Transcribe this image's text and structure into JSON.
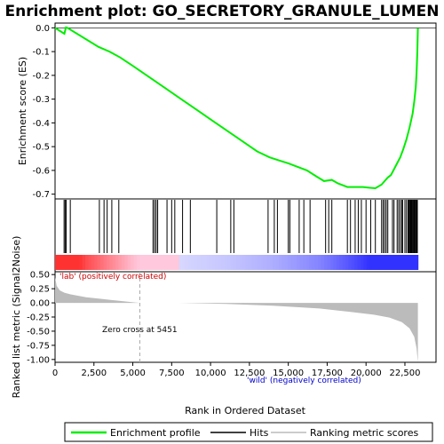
{
  "chart_data": {
    "type": "line",
    "title": "Enrichment plot: GO_SECRETORY_GRANULE_LUMEN",
    "panels": {
      "enrichment": {
        "ylabel": "Enrichment score (ES)",
        "ylim": [
          -0.72,
          0.02
        ],
        "yticks": [
          0.0,
          -0.1,
          -0.2,
          -0.3,
          -0.4,
          -0.5,
          -0.6,
          -0.7
        ],
        "ytick_labels": [
          "0.0",
          "-0.1",
          "-0.2",
          "-0.3",
          "-0.4",
          "-0.5",
          "-0.6",
          "-0.7"
        ],
        "series": [
          {
            "name": "Enrichment profile",
            "color": "#00ee00",
            "x": [
              0,
              600,
              700,
              800,
              2800,
              3500,
              4200,
              5000,
              6000,
              7000,
              8000,
              9000,
              10000,
              11000,
              12000,
              13000,
              13800,
              14500,
              15000,
              15600,
              16200,
              16800,
              17300,
              17800,
              18200,
              18800,
              19300,
              19800,
              20200,
              20600,
              21000,
              21400,
              21600,
              21800,
              22000,
              22200,
              22400,
              22600,
              22800,
              23000,
              23100,
              23200,
              23250,
              23300,
              23320,
              23336
            ],
            "y": [
              0.0,
              -0.025,
              0.002,
              0.0,
              -0.08,
              -0.1,
              -0.125,
              -0.16,
              -0.205,
              -0.25,
              -0.295,
              -0.34,
              -0.385,
              -0.43,
              -0.475,
              -0.52,
              -0.545,
              -0.56,
              -0.57,
              -0.585,
              -0.6,
              -0.625,
              -0.645,
              -0.64,
              -0.655,
              -0.67,
              -0.67,
              -0.67,
              -0.673,
              -0.675,
              -0.66,
              -0.63,
              -0.62,
              -0.595,
              -0.57,
              -0.545,
              -0.51,
              -0.47,
              -0.42,
              -0.36,
              -0.31,
              -0.25,
              -0.19,
              -0.1,
              -0.05,
              0.0
            ]
          }
        ]
      },
      "hits": {
        "positions": [
          580,
          650,
          720,
          980,
          2850,
          3150,
          3350,
          3650,
          4100,
          6300,
          6400,
          6500,
          6600,
          7200,
          7500,
          7700,
          8200,
          8700,
          10400,
          11300,
          11500,
          13700,
          14100,
          14300,
          15000,
          15100,
          15700,
          16000,
          16400,
          17400,
          17600,
          17800,
          18800,
          19000,
          19300,
          19500,
          19700,
          20000,
          20300,
          20600,
          21000,
          21100,
          21200,
          21300,
          21400,
          21700,
          21800,
          22000,
          22100,
          22200,
          22300,
          22350,
          22500,
          22600,
          22700,
          22750,
          22800,
          22850,
          22900,
          22950,
          23000,
          23050,
          23100,
          23150,
          23200,
          23250,
          23300
        ]
      },
      "ranked_metric": {
        "ylabel": "Ranked list metric (Signal2Noise)",
        "xlabel": "Rank in Ordered Dataset",
        "ylim": [
          -1.05,
          0.55
        ],
        "yticks": [
          0.5,
          0.25,
          0.0,
          -0.25,
          -0.5,
          -0.75,
          -1.0
        ],
        "ytick_labels": [
          "0.50",
          "0.25",
          "0.00",
          "-0.25",
          "-0.50",
          "-0.75",
          "-1.00"
        ],
        "xlim": [
          0,
          24500
        ],
        "xticks": [
          0,
          2500,
          5000,
          7500,
          10000,
          12500,
          15000,
          17500,
          20000,
          22500
        ],
        "xtick_labels": [
          "0",
          "2,500",
          "5,000",
          "7,500",
          "10,000",
          "12,500",
          "15,000",
          "17,500",
          "20,000",
          "22,500"
        ],
        "x": [
          0,
          100,
          300,
          600,
          1000,
          2000,
          3000,
          4000,
          5000,
          5451,
          8000,
          11000,
          14000,
          17000,
          19000,
          20500,
          21500,
          22300,
          22800,
          23100,
          23250,
          23336
        ],
        "y": [
          0.45,
          0.3,
          0.22,
          0.18,
          0.15,
          0.1,
          0.07,
          0.04,
          0.01,
          0.0,
          0.0,
          -0.02,
          -0.05,
          -0.1,
          -0.16,
          -0.21,
          -0.26,
          -0.34,
          -0.45,
          -0.6,
          -0.8,
          -1.05
        ],
        "zero_cross_label": "Zero cross at 5451",
        "pos_label": "'lab' (positively correlated)",
        "neg_label": "'wild' (negatively correlated)"
      }
    },
    "legend": {
      "position": "bottom",
      "entries": [
        {
          "label": "Enrichment profile",
          "color": "#00ee00"
        },
        {
          "label": "Hits",
          "color": "#000000"
        },
        {
          "label": "Ranking metric scores",
          "color": "#bbbbbb"
        }
      ]
    }
  }
}
